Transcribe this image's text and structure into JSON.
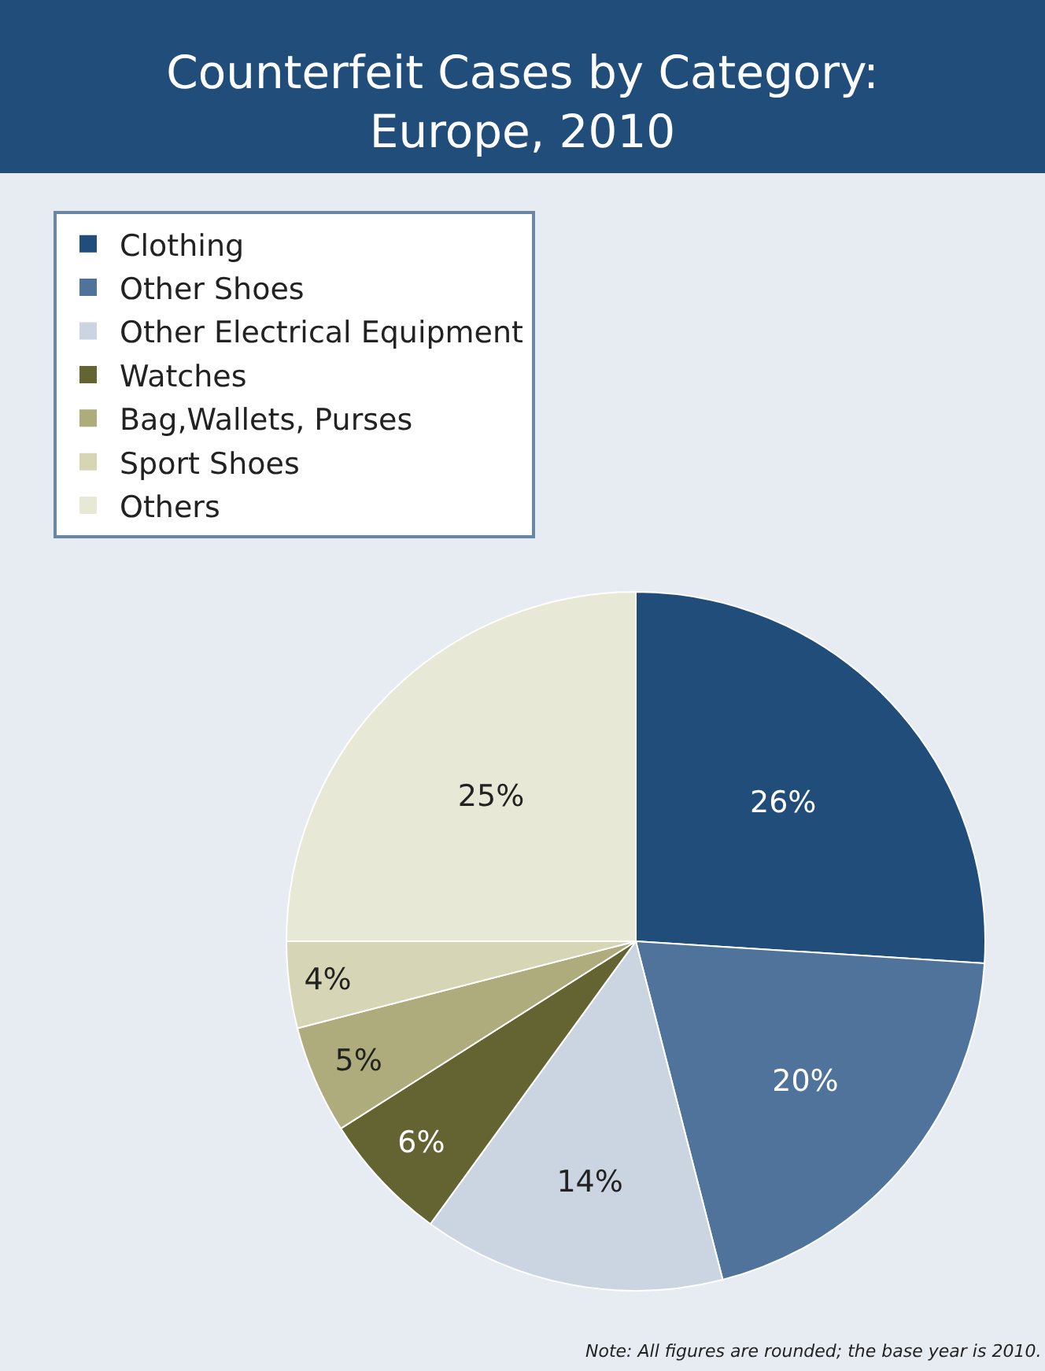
{
  "chart_data": {
    "type": "pie",
    "title": "Counterfeit Cases by Category:\nEurope, 2010",
    "categories": [
      "Clothing",
      "Other Shoes",
      "Other Electrical Equipment",
      "Watches",
      "Bag,Wallets, Purses",
      "Sport Shoes",
      "Others"
    ],
    "values": [
      26,
      20,
      14,
      6,
      5,
      4,
      25
    ],
    "colors": [
      "#214d7b",
      "#4f739b",
      "#cad5e1",
      "#646433",
      "#aeac7d",
      "#d6d5b5",
      "#e8e8d7"
    ],
    "value_labels": [
      "26%",
      "20%",
      "14%",
      "6%",
      "5%",
      "4%",
      "25%"
    ],
    "legend": "top left",
    "annotations": [
      "Note: All figures are rounded; the base year is 2010."
    ]
  }
}
